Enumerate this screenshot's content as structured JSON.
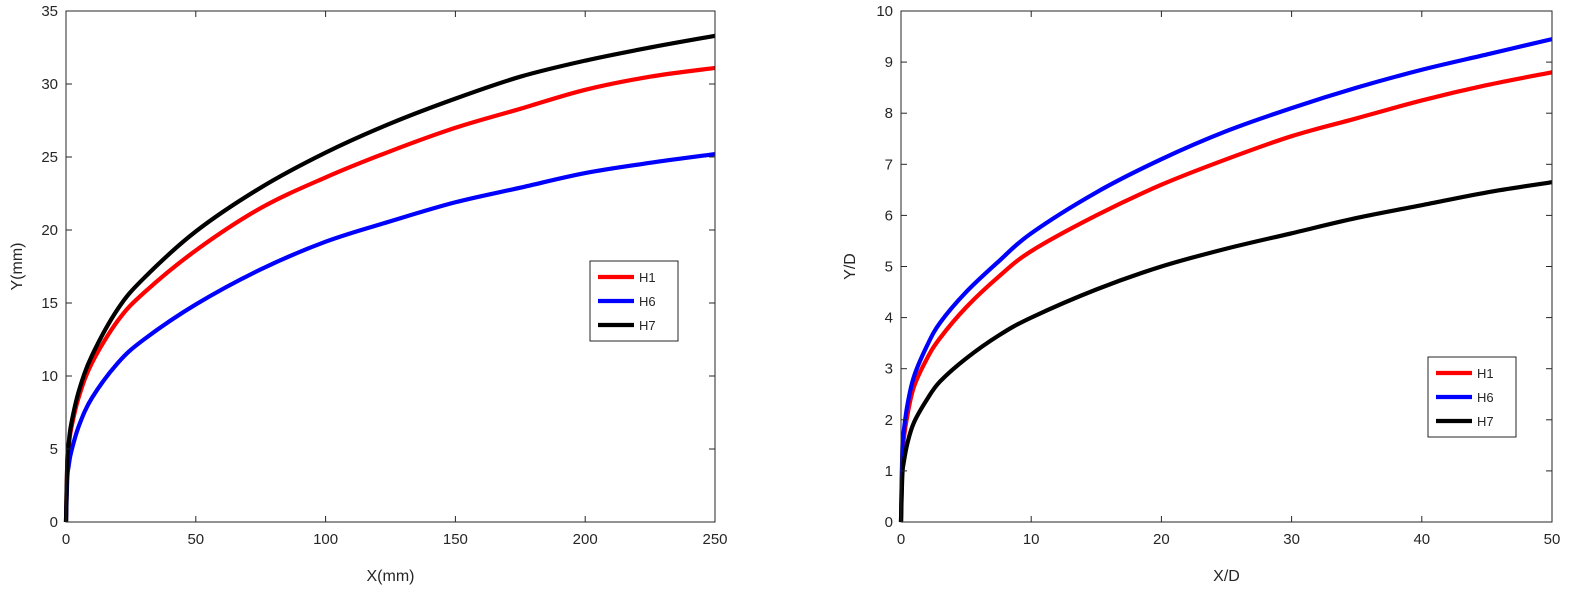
{
  "chart_data": [
    {
      "type": "line",
      "xlabel": "X(mm)",
      "ylabel": "Y(mm)",
      "xlim": [
        0,
        250
      ],
      "ylim": [
        0,
        35
      ],
      "xticks": [
        0,
        50,
        100,
        150,
        200,
        250
      ],
      "yticks": [
        0,
        5,
        10,
        15,
        20,
        25,
        30,
        35
      ],
      "grid": false,
      "legend": "center-right",
      "series": [
        {
          "name": "H1",
          "color": "#ff0000",
          "x": [
            0,
            0.5,
            1,
            2,
            5,
            10,
            20,
            30,
            50,
            75,
            100,
            125,
            150,
            175,
            200,
            225,
            250
          ],
          "y": [
            0,
            4.1,
            5.1,
            6.4,
            8.6,
            10.9,
            13.8,
            15.7,
            18.6,
            21.5,
            23.6,
            25.4,
            27.0,
            28.3,
            29.6,
            30.5,
            31.1
          ]
        },
        {
          "name": "H6",
          "color": "#0000ff",
          "x": [
            0,
            0.5,
            1,
            2,
            5,
            10,
            20,
            30,
            50,
            75,
            100,
            125,
            150,
            175,
            200,
            225,
            250
          ],
          "y": [
            0,
            3.0,
            3.8,
            4.8,
            6.6,
            8.5,
            10.9,
            12.5,
            14.9,
            17.3,
            19.2,
            20.6,
            21.9,
            22.9,
            23.9,
            24.6,
            25.2
          ]
        },
        {
          "name": "H7",
          "color": "#000000",
          "x": [
            0,
            0.5,
            1,
            2,
            5,
            10,
            20,
            30,
            50,
            75,
            100,
            125,
            150,
            175,
            200,
            225,
            250
          ],
          "y": [
            0,
            4.3,
            5.3,
            6.7,
            9.0,
            11.4,
            14.6,
            16.7,
            19.9,
            22.9,
            25.3,
            27.3,
            29.0,
            30.5,
            31.6,
            32.5,
            33.3
          ]
        }
      ]
    },
    {
      "type": "line",
      "xlabel": "X/D",
      "ylabel": "Y/D",
      "xlim": [
        0,
        50
      ],
      "ylim": [
        0,
        10
      ],
      "xticks": [
        0,
        10,
        20,
        30,
        40,
        50
      ],
      "yticks": [
        0,
        1,
        2,
        3,
        4,
        5,
        6,
        7,
        8,
        9,
        10
      ],
      "grid": false,
      "legend": "bottom-right",
      "series": [
        {
          "name": "H1",
          "color": "#ff0000",
          "x": [
            0,
            0.1,
            0.2,
            0.5,
            1,
            2,
            3,
            5,
            7.5,
            10,
            15,
            20,
            25,
            30,
            35,
            40,
            45,
            50
          ],
          "y": [
            0,
            1.25,
            1.6,
            2.1,
            2.65,
            3.2,
            3.6,
            4.2,
            4.8,
            5.3,
            6.0,
            6.6,
            7.1,
            7.55,
            7.9,
            8.25,
            8.55,
            8.8
          ]
        },
        {
          "name": "H6",
          "color": "#0000ff",
          "x": [
            0,
            0.1,
            0.2,
            0.5,
            1,
            2,
            3,
            5,
            7.5,
            10,
            15,
            20,
            25,
            30,
            35,
            40,
            45,
            50
          ],
          "y": [
            0,
            1.4,
            1.75,
            2.3,
            2.85,
            3.45,
            3.9,
            4.5,
            5.1,
            5.65,
            6.45,
            7.1,
            7.65,
            8.1,
            8.5,
            8.85,
            9.15,
            9.45
          ]
        },
        {
          "name": "H7",
          "color": "#000000",
          "x": [
            0,
            0.1,
            0.2,
            0.5,
            1,
            2,
            3,
            5,
            7.5,
            10,
            15,
            20,
            25,
            30,
            35,
            40,
            45,
            50
          ],
          "y": [
            0,
            0.9,
            1.15,
            1.55,
            1.95,
            2.4,
            2.75,
            3.2,
            3.65,
            4.0,
            4.55,
            5.0,
            5.35,
            5.65,
            5.95,
            6.2,
            6.45,
            6.65
          ]
        }
      ]
    }
  ]
}
